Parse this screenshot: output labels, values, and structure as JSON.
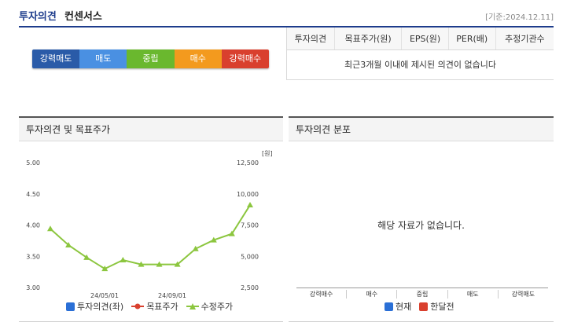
{
  "header": {
    "title": "투자의견",
    "subtitle": "컨센서스",
    "date": "[기준:2024.12.11]"
  },
  "rating_bar": [
    {
      "label": "강력매도",
      "color": "#2a5ba8"
    },
    {
      "label": "매도",
      "color": "#4a90e2"
    },
    {
      "label": "중립",
      "color": "#6ab82e"
    },
    {
      "label": "매수",
      "color": "#f39a1e"
    },
    {
      "label": "강력매수",
      "color": "#d9402e"
    }
  ],
  "consensus_table": {
    "headers": [
      "투자의견",
      "목표주가(원)",
      "EPS(원)",
      "PER(배)",
      "추정기관수"
    ],
    "message": "최근3개월 이내에 제시된 의견이 없습니다"
  },
  "opinion_panel": {
    "title": "투자의견 및 목표주가",
    "legend": [
      {
        "label": "투자의견(좌)",
        "color": "#2a6fd6"
      },
      {
        "label": "목표주가",
        "color": "#d9402e"
      },
      {
        "label": "수정주가",
        "color": "#8cc63f"
      }
    ]
  },
  "distribution_panel": {
    "title": "투자의견 분포",
    "no_data": "해당 자료가 없습니다.",
    "categories": [
      "강력매수",
      "매수",
      "중립",
      "매도",
      "강력매도"
    ],
    "legend": [
      {
        "label": "현재",
        "color": "#2a6fd6"
      },
      {
        "label": "한달전",
        "color": "#d9402e"
      }
    ]
  },
  "chart_data": {
    "type": "line",
    "title": "투자의견 및 목표주가",
    "x_ticks": [
      "24/05/01",
      "24/09/01"
    ],
    "left_axis": {
      "ticks": [
        "5.00",
        "4.50",
        "4.00",
        "3.50",
        "3.00"
      ],
      "range": [
        3.0,
        5.0
      ]
    },
    "right_axis": {
      "unit": "[원]",
      "ticks": [
        "12,500",
        "10,000",
        "7,500",
        "5,000",
        "2,500"
      ],
      "range": [
        2500,
        12500
      ]
    },
    "series": [
      {
        "name": "수정주가",
        "color": "#8cc63f",
        "values": [
          7200,
          5900,
          4900,
          4000,
          4700,
          4350,
          4350,
          4350,
          5600,
          6300,
          6800,
          9100
        ]
      }
    ]
  }
}
